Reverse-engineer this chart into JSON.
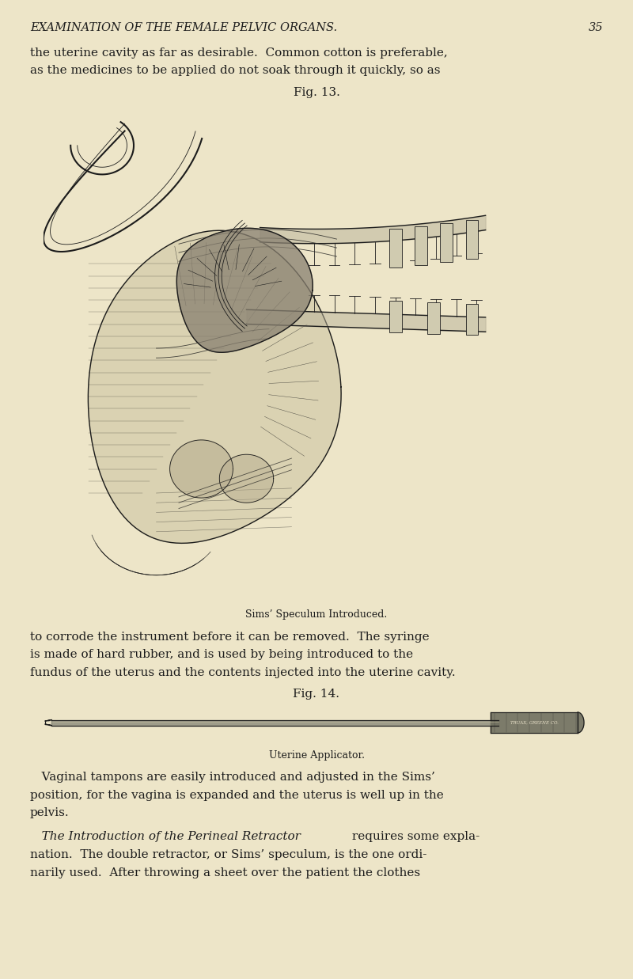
{
  "background_color": "#ede5c8",
  "page_width": 8.0,
  "page_height": 12.37,
  "dpi": 100,
  "header_text": "EXAMINATION OF THE FEMALE PELVIC ORGANS.",
  "header_page_num": "35",
  "body_text_color": "#1c1c1c",
  "line1": "the uterine cavity as far as desirable.  Common cotton is preferable,",
  "line2": "as the medicines to be applied do not soak through it quickly, so as",
  "fig13_label": "Fig. 13.",
  "fig13_caption": "Sims’ Speculum Introduced.",
  "fig14_label": "Fig. 14.",
  "fig14_caption": "Uterine Applicator.",
  "body_lines_after_fig13": [
    "to corrode the instrument before it can be removed.  The syringe",
    "is made of hard rubber, and is used by being introduced to the",
    "fundus of the uterus and the contents injected into the uterine cavity."
  ],
  "vaginal_lines": [
    "   Vaginal tampons are easily introduced and adjusted in the Sims’",
    "position, for the vagina is expanded and the uterus is well up in the",
    "pelvis."
  ],
  "italic_text": "   The Introduction of the Perineal Retractor",
  "regular_after_italic": " requires some expla-",
  "line_nation": "nation.  The double retractor, or Sims’ speculum, is the one ordi-",
  "line_narily": "narily used.  After throwing a sheet over the patient the clothes"
}
